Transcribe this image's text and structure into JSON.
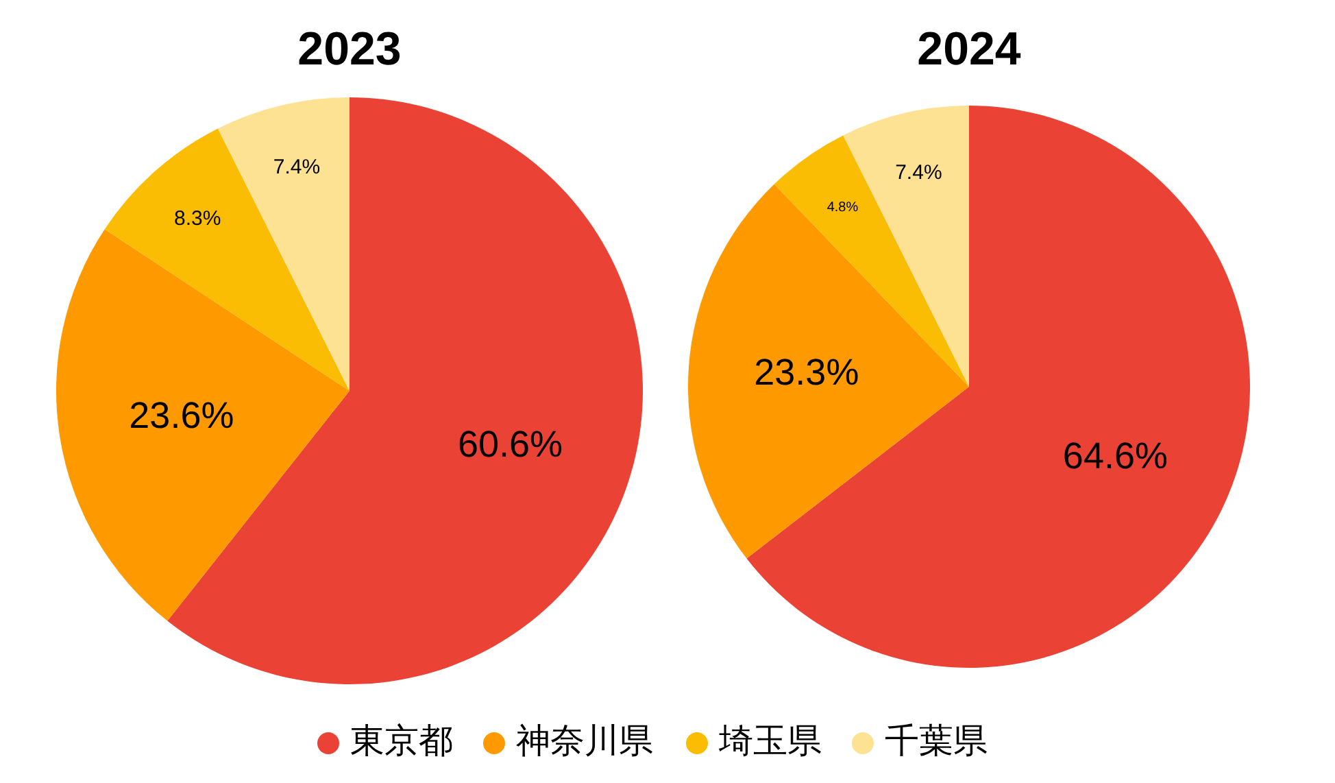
{
  "chart_data": [
    {
      "type": "pie",
      "title": "2023",
      "categories": [
        "東京都",
        "神奈川県",
        "埼玉県",
        "千葉県"
      ],
      "values": [
        60.6,
        23.6,
        8.3,
        7.4
      ],
      "value_labels": [
        "60.6%",
        "23.6%",
        "8.3%",
        "7.4%"
      ],
      "colors": [
        "#ea4335",
        "#ff9900",
        "#fbbc04",
        "#fde293"
      ],
      "legend": "bottom"
    },
    {
      "type": "pie",
      "title": "2024",
      "categories": [
        null,
        null,
        null,
        null
      ],
      "values": [
        64.6,
        23.3,
        4.8,
        7.4
      ],
      "value_labels": [
        "64.6%",
        "23.3%",
        "4.8%",
        "7.4%"
      ],
      "colors": [
        "#ea4335",
        "#ff9900",
        "#fbbc04",
        "#fde293"
      ]
    }
  ]
}
